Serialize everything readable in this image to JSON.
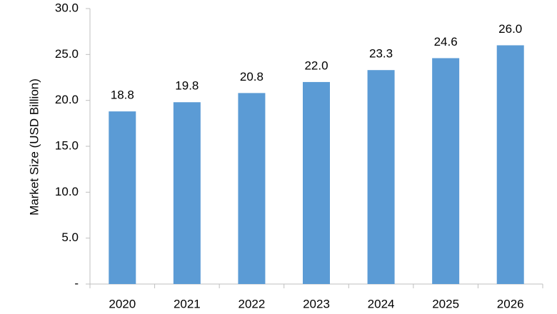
{
  "chart_data": {
    "type": "bar",
    "categories": [
      "2020",
      "2021",
      "2022",
      "2023",
      "2024",
      "2025",
      "2026"
    ],
    "values": [
      18.8,
      19.8,
      20.8,
      22.0,
      23.3,
      24.6,
      26.0
    ],
    "value_labels": [
      "18.8",
      "19.8",
      "20.8",
      "22.0",
      "23.3",
      "24.6",
      "26.0"
    ],
    "title": "",
    "xlabel": "",
    "ylabel": "Market Size (USD Billion)",
    "ylim": [
      0,
      30
    ],
    "yticks": [
      0,
      5,
      10,
      15,
      20,
      25,
      30
    ],
    "ytick_labels": [
      "-",
      "5.0",
      "10.0",
      "15.0",
      "20.0",
      "25.0",
      "30.0"
    ],
    "grid": false,
    "legend": "none",
    "bar_color": "#5b9bd5"
  }
}
